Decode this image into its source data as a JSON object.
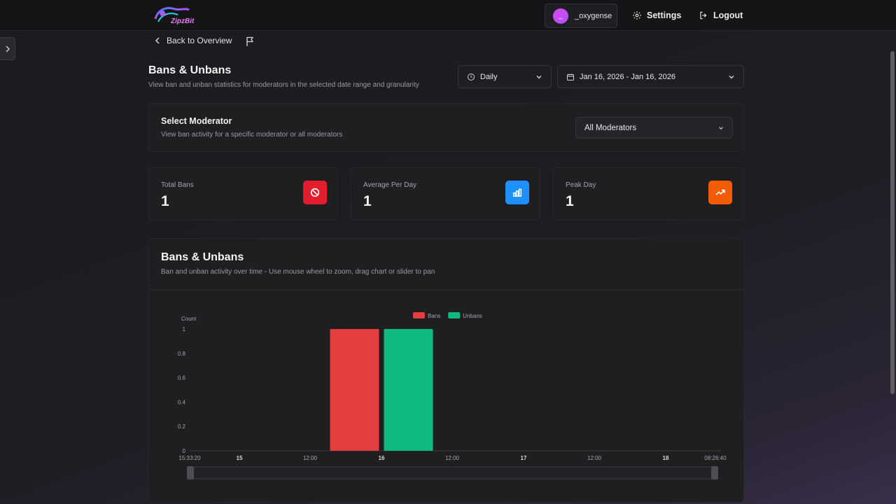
{
  "header": {
    "logo_text": "ZipzBit",
    "user_initial": "_",
    "username": "_oxygense",
    "settings_label": "Settings",
    "logout_label": "Logout"
  },
  "nav": {
    "back_label": "Back to Overview"
  },
  "page": {
    "title": "Bans & Unbans",
    "subtitle": "View ban and unban statistics for moderators in the selected date range and granularity"
  },
  "filters": {
    "granularity": "Daily",
    "date_range": "Jan 16, 2026 - Jan 16, 2026"
  },
  "moderator": {
    "title": "Select Moderator",
    "subtitle": "View ban activity for a specific moderator or all moderators",
    "selected": "All Moderators"
  },
  "stats": [
    {
      "label": "Total Bans",
      "value": "1",
      "icon": "ban-icon",
      "color": "#e11d2e"
    },
    {
      "label": "Average Per Day",
      "value": "1",
      "icon": "bar-chart-icon",
      "color": "#1e90ff"
    },
    {
      "label": "Peak Day",
      "value": "1",
      "icon": "trending-up-icon",
      "color": "#f25c05"
    }
  ],
  "chart_section": {
    "title": "Bans & Unbans",
    "subtitle": "Ban and unban activity over time - Use mouse wheel to zoom, drag chart or slider to pan"
  },
  "chart_data": {
    "type": "bar",
    "ylabel": "Count",
    "ylim": [
      0,
      1
    ],
    "y_ticks": [
      "0",
      "0.2",
      "0.4",
      "0.6",
      "0.8",
      "1"
    ],
    "x_ticks": [
      "15:33:20",
      "15",
      "12:00",
      "16",
      "12:00",
      "17",
      "12:00",
      "18",
      "08:26:40"
    ],
    "legend": "top-center",
    "grid": false,
    "series": [
      {
        "name": "Bans",
        "color": "#e53e3e",
        "category": "16",
        "value": 1
      },
      {
        "name": "Unbans",
        "color": "#10b981",
        "category": "16",
        "value": 1
      }
    ],
    "bar_x": "Jan 16",
    "slider": true
  }
}
